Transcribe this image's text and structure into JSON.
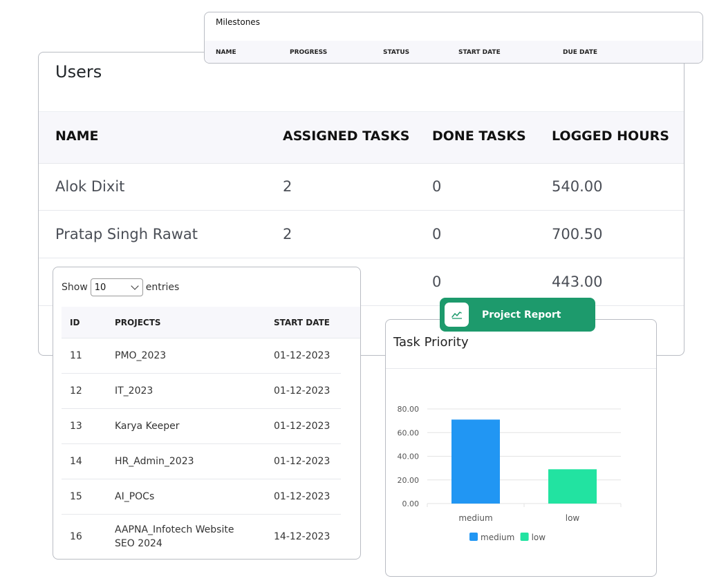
{
  "milestones": {
    "title": "Milestones",
    "columns": [
      "NAME",
      "PROGRESS",
      "STATUS",
      "START DATE",
      "DUE DATE"
    ]
  },
  "users": {
    "title": "Users",
    "columns": [
      "NAME",
      "ASSIGNED TASKS",
      "DONE TASKS",
      "LOGGED HOURS"
    ],
    "rows": [
      {
        "name": "Alok Dixit",
        "assigned": "2",
        "done": "0",
        "hours": "540.00"
      },
      {
        "name": "Pratap Singh Rawat",
        "assigned": "2",
        "done": "0",
        "hours": "700.50"
      },
      {
        "name": "",
        "assigned": "",
        "done": "0",
        "hours": "443.00"
      }
    ]
  },
  "projects": {
    "show_label": "Show",
    "entries_label": "entries",
    "page_length": "10",
    "columns": [
      "ID",
      "PROJECTS",
      "START DATE"
    ],
    "rows": [
      {
        "id": "11",
        "project": "PMO_2023",
        "start": "01-12-2023"
      },
      {
        "id": "12",
        "project": "IT_2023",
        "start": "01-12-2023"
      },
      {
        "id": "13",
        "project": "Karya Keeper",
        "start": "01-12-2023"
      },
      {
        "id": "14",
        "project": "HR_Admin_2023",
        "start": "01-12-2023"
      },
      {
        "id": "15",
        "project": "AI_POCs",
        "start": "01-12-2023"
      },
      {
        "id": "16",
        "project": "AAPNA_Infotech Website SEO 2024",
        "start": "14-12-2023"
      }
    ]
  },
  "report_banner": {
    "label": "Project Report",
    "icon": "line-chart-icon"
  },
  "task_priority": {
    "title": "Task Priority"
  },
  "chart_data": {
    "type": "bar",
    "title": "Task Priority",
    "categories": [
      "medium",
      "low"
    ],
    "values": [
      71,
      29
    ],
    "colors": [
      "#2196f3",
      "#22e3a1"
    ],
    "legend": [
      "medium",
      "low"
    ],
    "legend_position": "bottom",
    "ylim": [
      0,
      80
    ],
    "yticks": [
      "0.00",
      "20.00",
      "40.00",
      "60.00",
      "80.00"
    ],
    "grid": true,
    "xlabel": "",
    "ylabel": ""
  },
  "colors": {
    "banner": "#1d9a6c",
    "border": "#b9bcc3",
    "header_bg": "#f7f7fb"
  }
}
